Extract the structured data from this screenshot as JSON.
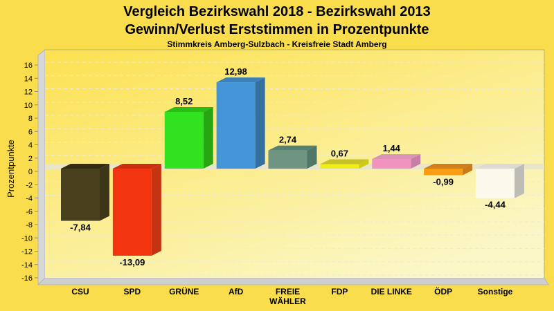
{
  "header": {
    "title_line1": "Vergleich Bezirkswahl 2018 - Bezirkswahl 2013",
    "title_line2": "Gewinn/Verlust Erststimmen in Prozentpunkte",
    "subtitle": "Stimmkreis Amberg-Sulzbach - Kreisfreie Stadt Amberg"
  },
  "colors": {
    "page_bg": "#FADD4D",
    "plot_bg_from": "#FCE150",
    "plot_bg_to": "#FBF7C6",
    "wall": "#D7D7D7",
    "floor": "#CFCFCF",
    "frame_edge": "#B5B5B5",
    "plot_border": "#BBAE62",
    "grid": "#EDEAD6",
    "zero_band": "#E9E5C9",
    "text": "#000000"
  },
  "chart_data": {
    "type": "bar",
    "bar_style": "3d",
    "title": "Vergleich Bezirkswahl 2018 - Bezirkswahl 2013 / Gewinn/Verlust Erststimmen in Prozentpunkte",
    "subtitle": "Stimmkreis Amberg-Sulzbach - Kreisfreie Stadt Amberg",
    "xlabel": "",
    "ylabel": "Prozentpunkte",
    "ylim": [
      -16,
      16
    ],
    "ytick_step": 2,
    "grid": "horizontal dashed",
    "legend_position": "none",
    "categories": [
      "CSU",
      "SPD",
      "GRÜNE",
      "AfD",
      "FREIE WÄHLER",
      "FDP",
      "DIE LINKE",
      "ÖDP",
      "Sonstige"
    ],
    "category_lines": [
      [
        "CSU"
      ],
      [
        "SPD"
      ],
      [
        "GRÜNE"
      ],
      [
        "AfD"
      ],
      [
        "FREIE",
        "WÄHLER"
      ],
      [
        "FDP"
      ],
      [
        "DIE LINKE"
      ],
      [
        "ÖDP"
      ],
      [
        "Sonstige"
      ]
    ],
    "values": [
      -7.84,
      -13.09,
      8.52,
      12.98,
      2.74,
      0.67,
      1.44,
      -0.99,
      -4.44
    ],
    "value_labels": [
      "-7,84",
      "-13,09",
      "8,52",
      "12,98",
      "2,74",
      "0,67",
      "1,44",
      "-0,99",
      "-4,44"
    ],
    "bar_colors": [
      {
        "front": "#49411E",
        "top": "#322C10",
        "side": "#3C3517"
      },
      {
        "front": "#F23510",
        "top": "#C9300E",
        "side": "#C43413"
      },
      {
        "front": "#32E120",
        "top": "#2ABD17",
        "side": "#27A513"
      },
      {
        "front": "#4495D8",
        "top": "#3B80BA",
        "side": "#33709F"
      },
      {
        "front": "#6F9482",
        "top": "#5A8170",
        "side": "#507767"
      },
      {
        "front": "#F0ED1A",
        "top": "#C6C228",
        "side": "#CFCB11"
      },
      {
        "front": "#F192BF",
        "top": "#DA93B7",
        "side": "#C57FA5"
      },
      {
        "front": "#F89D14",
        "top": "#CF7F1E",
        "side": "#CC7A15"
      },
      {
        "front": "#FBF9EC",
        "top": "#DBDBD3",
        "side": "#BDBDB5"
      }
    ]
  }
}
